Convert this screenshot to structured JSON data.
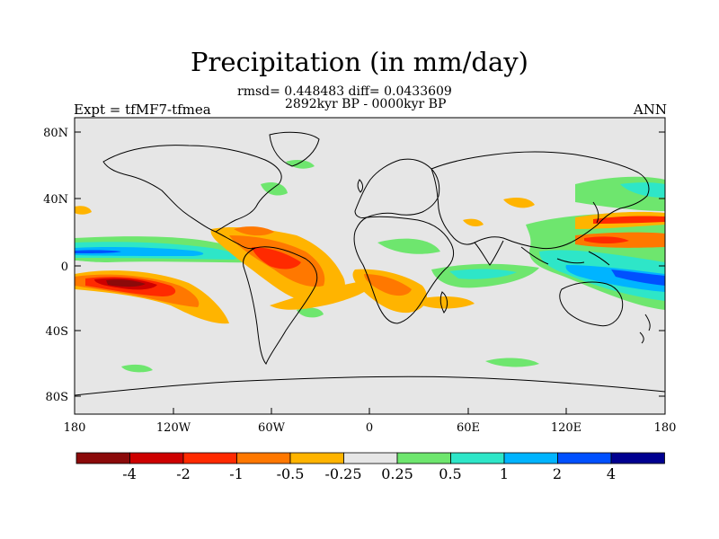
{
  "title": "Precipitation (in mm/day)",
  "stats_line": "rmsd= 0.448483 diff= 0.0433609",
  "period_line": "2892kyr BP - 0000kyr BP",
  "experiment_label": "Expt = tfMF7-tfmea",
  "season_label": "ANN",
  "axes": {
    "lon_ticks": [
      "180",
      "120W",
      "60W",
      "0",
      "60E",
      "120E",
      "180"
    ],
    "lat_ticks": [
      "80N",
      "40N",
      "0",
      "40S",
      "80S"
    ],
    "lon_range": [
      -180,
      180
    ],
    "lat_range": [
      -90,
      90
    ]
  },
  "colorbar": {
    "labels": [
      "-4",
      "-2",
      "-1",
      "-0.5",
      "-0.25",
      "0.25",
      "0.5",
      "1",
      "2",
      "4"
    ],
    "colors": [
      "#8b0a0a",
      "#cd0000",
      "#ff2a00",
      "#ff7800",
      "#ffb400",
      "#e6e6e6",
      "#6ee66e",
      "#2ee6c8",
      "#00b4ff",
      "#0050ff",
      "#000090"
    ]
  },
  "colors": {
    "background": "#e6e6e6",
    "coast": "#000000"
  }
}
